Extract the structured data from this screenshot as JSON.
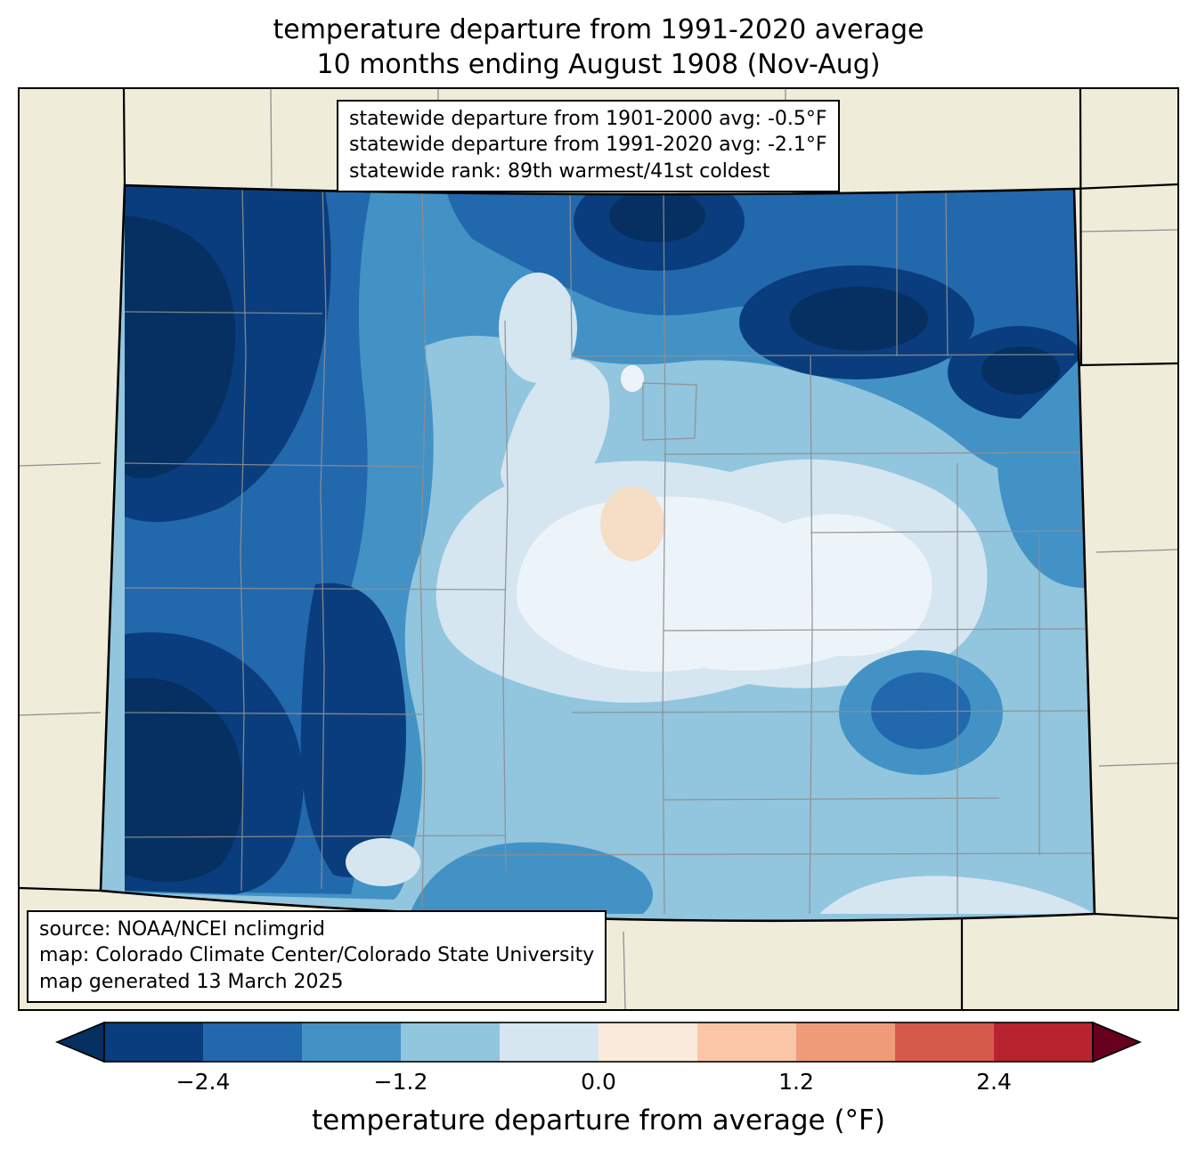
{
  "title": {
    "line1": "temperature departure from 1991-2020 average",
    "line2": "10 months ending August 1908 (Nov-Aug)"
  },
  "stats_box": {
    "line1": "statewide departure from 1901-2000 avg: -0.5°F",
    "line2": "statewide departure from 1991-2020 avg: -2.1°F",
    "line3": "statewide rank: 89th warmest/41st coldest"
  },
  "source_box": {
    "line1": "source: NOAA/NCEI nclimgrid",
    "line2": "map: Colorado Climate Center/Colorado State University",
    "line3": "map generated 13 March 2025"
  },
  "colorbar": {
    "label": "temperature departure from average (°F)",
    "min": -3.0,
    "max": 3.0,
    "ticks": [
      {
        "value": -2.4,
        "label": "−2.4"
      },
      {
        "value": -1.2,
        "label": "−1.2"
      },
      {
        "value": 0.0,
        "label": "0.0"
      },
      {
        "value": 1.2,
        "label": "1.2"
      },
      {
        "value": 2.4,
        "label": "2.4"
      }
    ],
    "segments": [
      "#0a3d7d",
      "#2268ad",
      "#4292c6",
      "#92c5de",
      "#d5e6f1",
      "#faeadb",
      "#f9c6a8",
      "#ef9b78",
      "#d65a4c",
      "#b82330"
    ],
    "arrow_left": "#053061",
    "arrow_right": "#67001f"
  },
  "colors": {
    "land_bg": "#f0ecda",
    "state_border": "#000000",
    "county_line": "#8f8f8f",
    "center_white": "#edf4f9",
    "peach_spot": "#f6ddc6"
  }
}
